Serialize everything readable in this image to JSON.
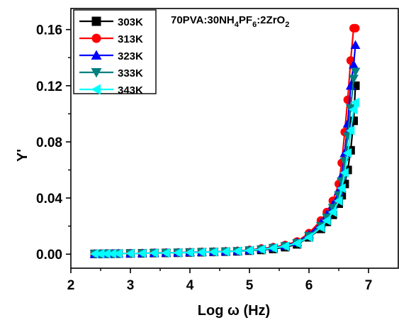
{
  "chart_data": {
    "type": "scatter",
    "annotation": {
      "parts": [
        "70PVA:30NH",
        "4",
        "PF",
        "6",
        ":2ZrO",
        "2"
      ]
    },
    "xlabel": "Log ω (Hz)",
    "ylabel": "Y'",
    "xlim": [
      2,
      7.5
    ],
    "ylim": [
      -0.01,
      0.175
    ],
    "xticks": [
      2,
      3,
      4,
      5,
      6,
      7
    ],
    "xtick_labels": [
      "2",
      "3",
      "4",
      "5",
      "6",
      "7"
    ],
    "yticks": [
      0.0,
      0.04,
      0.08,
      0.12,
      0.16
    ],
    "ytick_labels": [
      "0.00",
      "0.04",
      "0.08",
      "0.12",
      "0.16"
    ],
    "legend_position": "top-left",
    "series": [
      {
        "name": "303K",
        "color": "#000000",
        "marker": "square",
        "x": [
          2.4,
          2.5,
          2.6,
          2.7,
          2.8,
          3.0,
          3.2,
          3.4,
          3.6,
          3.8,
          4.0,
          4.2,
          4.4,
          4.6,
          4.8,
          5.0,
          5.2,
          5.4,
          5.6,
          5.8,
          6.0,
          6.2,
          6.3,
          6.4,
          6.5,
          6.55,
          6.6,
          6.65,
          6.7,
          6.75,
          6.78
        ],
        "y": [
          0.0002,
          0.0002,
          0.0003,
          0.0003,
          0.0004,
          0.0005,
          0.0006,
          0.0008,
          0.0009,
          0.001,
          0.0012,
          0.0014,
          0.0016,
          0.0018,
          0.002,
          0.0025,
          0.003,
          0.0037,
          0.005,
          0.007,
          0.012,
          0.018,
          0.023,
          0.028,
          0.036,
          0.042,
          0.05,
          0.06,
          0.074,
          0.095,
          0.12
        ]
      },
      {
        "name": "313K",
        "color": "#ff0000",
        "marker": "circle",
        "x": [
          2.4,
          2.5,
          2.6,
          2.7,
          2.8,
          3.0,
          3.2,
          3.4,
          3.6,
          3.8,
          4.0,
          4.2,
          4.4,
          4.6,
          4.8,
          5.0,
          5.2,
          5.4,
          5.6,
          5.8,
          6.0,
          6.2,
          6.3,
          6.4,
          6.5,
          6.55,
          6.6,
          6.65,
          6.7,
          6.75,
          6.78
        ],
        "y": [
          0.0002,
          0.0003,
          0.0003,
          0.0004,
          0.0004,
          0.0005,
          0.0007,
          0.0008,
          0.001,
          0.0011,
          0.0013,
          0.0015,
          0.0017,
          0.002,
          0.0023,
          0.003,
          0.004,
          0.005,
          0.0065,
          0.009,
          0.015,
          0.024,
          0.03,
          0.038,
          0.05,
          0.065,
          0.087,
          0.11,
          0.138,
          0.161,
          0.161
        ]
      },
      {
        "name": "323K",
        "color": "#0000ff",
        "marker": "triangle-up",
        "x": [
          2.4,
          2.5,
          2.6,
          2.7,
          2.8,
          3.0,
          3.2,
          3.4,
          3.6,
          3.8,
          4.0,
          4.2,
          4.4,
          4.6,
          4.8,
          5.0,
          5.2,
          5.4,
          5.6,
          5.8,
          6.0,
          6.2,
          6.3,
          6.4,
          6.5,
          6.55,
          6.6,
          6.65,
          6.7,
          6.75,
          6.78
        ],
        "y": [
          0.0002,
          0.0002,
          0.0003,
          0.0003,
          0.0004,
          0.0005,
          0.0006,
          0.0008,
          0.001,
          0.0011,
          0.0013,
          0.0015,
          0.0017,
          0.0019,
          0.0022,
          0.0028,
          0.0037,
          0.0047,
          0.006,
          0.0085,
          0.014,
          0.022,
          0.028,
          0.035,
          0.045,
          0.056,
          0.072,
          0.093,
          0.12,
          0.135,
          0.149
        ]
      },
      {
        "name": "333K",
        "color": "#008080",
        "marker": "triangle-down",
        "x": [
          2.4,
          2.5,
          2.6,
          2.7,
          2.8,
          3.0,
          3.2,
          3.4,
          3.6,
          3.8,
          4.0,
          4.2,
          4.4,
          4.6,
          4.8,
          5.0,
          5.2,
          5.4,
          5.6,
          5.8,
          6.0,
          6.2,
          6.3,
          6.4,
          6.5,
          6.55,
          6.6,
          6.65,
          6.7,
          6.75,
          6.78
        ],
        "y": [
          0.0002,
          0.0002,
          0.0003,
          0.0003,
          0.0004,
          0.0005,
          0.0006,
          0.0008,
          0.0009,
          0.0011,
          0.0012,
          0.0014,
          0.0016,
          0.0019,
          0.0022,
          0.0027,
          0.0035,
          0.0045,
          0.0058,
          0.008,
          0.013,
          0.02,
          0.026,
          0.033,
          0.042,
          0.052,
          0.066,
          0.084,
          0.104,
          0.125,
          0.13
        ]
      },
      {
        "name": "343K",
        "color": "#00ffff",
        "marker": "triangle-left",
        "x": [
          2.4,
          2.5,
          2.6,
          2.7,
          2.8,
          3.0,
          3.2,
          3.4,
          3.6,
          3.8,
          4.0,
          4.2,
          4.4,
          4.6,
          4.8,
          5.0,
          5.2,
          5.4,
          5.6,
          5.8,
          6.0,
          6.2,
          6.3,
          6.4,
          6.5,
          6.55,
          6.6,
          6.65,
          6.7,
          6.75,
          6.78
        ],
        "y": [
          0.0002,
          0.0002,
          0.0003,
          0.0003,
          0.0004,
          0.0005,
          0.0006,
          0.0008,
          0.0009,
          0.001,
          0.0012,
          0.0014,
          0.0016,
          0.0018,
          0.0021,
          0.0026,
          0.0034,
          0.0043,
          0.0056,
          0.0077,
          0.012,
          0.019,
          0.024,
          0.03,
          0.038,
          0.047,
          0.058,
          0.072,
          0.088,
          0.103,
          0.108
        ]
      }
    ]
  }
}
